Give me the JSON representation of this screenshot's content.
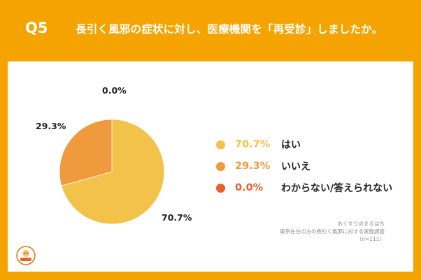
{
  "header": {
    "q_number": "Q5",
    "question": "長引く風邪の症状に対し、医療機関を「再受診」しましたか。"
  },
  "chart_data": {
    "type": "pie",
    "categories": [
      "はい",
      "いいえ",
      "わからない/答えられない"
    ],
    "values": [
      70.7,
      29.3,
      0.0
    ],
    "value_labels": [
      "70.7%",
      "29.3%",
      "0.0%"
    ],
    "colors": [
      "#f2c24a",
      "#f09a3e",
      "#e8602c"
    ],
    "legend_placement": "right"
  },
  "legend": [
    {
      "value": "70.7%",
      "label": "はい",
      "color": "#f2c24a"
    },
    {
      "value": "29.3%",
      "label": "いいえ",
      "color": "#f09a3e"
    },
    {
      "value": "0.0%",
      "label": "わからない/答えられない",
      "color": "#e8602c"
    }
  ],
  "source": {
    "line1": "おくすりのまるはち",
    "line2": "東京在住の方の長引く風邪に対する実態調査",
    "line3": "（n=111）"
  },
  "logo": {
    "icon": "pharmacy-logo-icon",
    "color": "#f5a300"
  }
}
